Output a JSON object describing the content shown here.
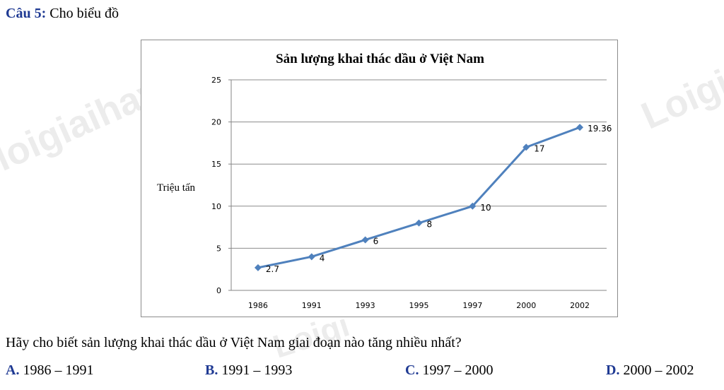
{
  "question": {
    "number_label": "Câu 5:",
    "intro": " Cho biểu đồ",
    "prompt": "Hãy cho biết sản lượng khai thác dầu ở Việt Nam giai đoạn nào tăng nhiều nhất?",
    "options": [
      {
        "letter": "A.",
        "text": " 1986 – 1991"
      },
      {
        "letter": "B.",
        "text": " 1991 – 1993"
      },
      {
        "letter": "C.",
        "text": " 1997 – 2000"
      },
      {
        "letter": "D.",
        "text": " 2000 – 2002"
      }
    ]
  },
  "watermarks": [
    "loigiaihay.com",
    "Loigi",
    "Loigi"
  ],
  "chart_data": {
    "type": "line",
    "title": "Sản lượng khai thác dầu ở Việt Nam",
    "ylabel": "Triệu  tấn",
    "xlabel": "",
    "categories": [
      "1986",
      "1991",
      "1993",
      "1995",
      "1997",
      "2000",
      "2002"
    ],
    "values": [
      2.7,
      4,
      6,
      8,
      10,
      17,
      19.36
    ],
    "data_labels": [
      "2.7",
      "4",
      "6",
      "8",
      "10",
      "17",
      "19.36"
    ],
    "ylim": [
      0,
      25
    ],
    "yticks": [
      0,
      5,
      10,
      15,
      20,
      25
    ],
    "grid": true,
    "line_color": "#4f81bd",
    "marker": "diamond"
  }
}
